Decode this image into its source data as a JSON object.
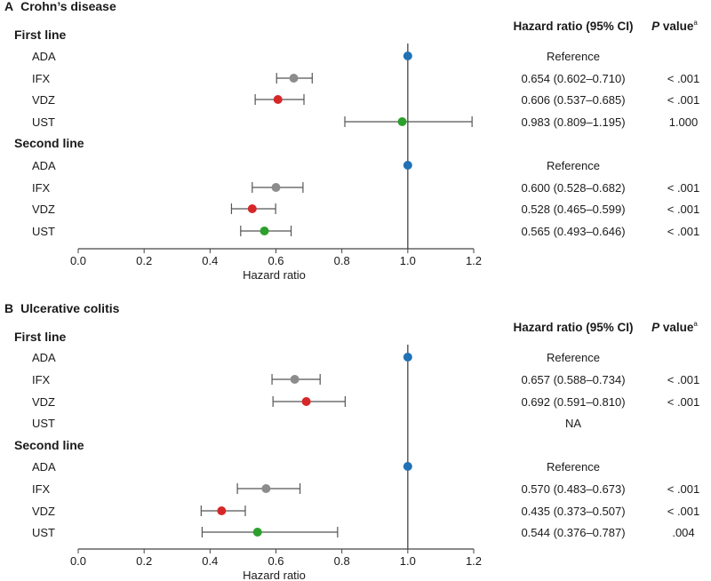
{
  "chart_data": [
    {
      "type": "forest",
      "panel": "A",
      "title": "Crohn’s disease",
      "xlabel": "Hazard ratio",
      "xlim": [
        0.0,
        1.2
      ],
      "xticks": [
        "0.0",
        "0.2",
        "0.4",
        "0.6",
        "0.8",
        "1.0",
        "1.2"
      ],
      "reference_line": 1.0,
      "col_hr": "Hazard ratio (95% CI)",
      "col_p": "P value",
      "col_p_sup": "a",
      "groups": [
        {
          "label": "First line",
          "rows": [
            {
              "drug": "ADA",
              "hr": 1.0,
              "lo": null,
              "hi": null,
              "hr_text": "Reference",
              "p": "",
              "color": "#2171b5"
            },
            {
              "drug": "IFX",
              "hr": 0.654,
              "lo": 0.602,
              "hi": 0.71,
              "hr_text": "0.654 (0.602–0.710)",
              "p": "< .001",
              "color": "#8c8c8c"
            },
            {
              "drug": "VDZ",
              "hr": 0.606,
              "lo": 0.537,
              "hi": 0.685,
              "hr_text": "0.606 (0.537–0.685)",
              "p": "< .001",
              "color": "#d62728"
            },
            {
              "drug": "UST",
              "hr": 0.983,
              "lo": 0.809,
              "hi": 1.195,
              "hr_text": "0.983 (0.809–1.195)",
              "p": "1.000",
              "color": "#2ca02c"
            }
          ]
        },
        {
          "label": "Second line",
          "rows": [
            {
              "drug": "ADA",
              "hr": 1.0,
              "lo": null,
              "hi": null,
              "hr_text": "Reference",
              "p": "",
              "color": "#2171b5"
            },
            {
              "drug": "IFX",
              "hr": 0.6,
              "lo": 0.528,
              "hi": 0.682,
              "hr_text": "0.600 (0.528–0.682)",
              "p": "< .001",
              "color": "#8c8c8c"
            },
            {
              "drug": "VDZ",
              "hr": 0.528,
              "lo": 0.465,
              "hi": 0.599,
              "hr_text": "0.528 (0.465–0.599)",
              "p": "< .001",
              "color": "#d62728"
            },
            {
              "drug": "UST",
              "hr": 0.565,
              "lo": 0.493,
              "hi": 0.646,
              "hr_text": "0.565 (0.493–0.646)",
              "p": "< .001",
              "color": "#2ca02c"
            }
          ]
        }
      ]
    },
    {
      "type": "forest",
      "panel": "B",
      "title": "Ulcerative colitis",
      "xlabel": "Hazard ratio",
      "xlim": [
        0.0,
        1.2
      ],
      "xticks": [
        "0.0",
        "0.2",
        "0.4",
        "0.6",
        "0.8",
        "1.0",
        "1.2"
      ],
      "reference_line": 1.0,
      "col_hr": "Hazard ratio (95% CI)",
      "col_p": "P value",
      "col_p_sup": "a",
      "groups": [
        {
          "label": "First line",
          "rows": [
            {
              "drug": "ADA",
              "hr": 1.0,
              "lo": null,
              "hi": null,
              "hr_text": "Reference",
              "p": "",
              "color": "#2171b5"
            },
            {
              "drug": "IFX",
              "hr": 0.657,
              "lo": 0.588,
              "hi": 0.734,
              "hr_text": "0.657 (0.588–0.734)",
              "p": "< .001",
              "color": "#8c8c8c"
            },
            {
              "drug": "VDZ",
              "hr": 0.692,
              "lo": 0.591,
              "hi": 0.81,
              "hr_text": "0.692 (0.591–0.810)",
              "p": "< .001",
              "color": "#d62728"
            },
            {
              "drug": "UST",
              "hr": null,
              "lo": null,
              "hi": null,
              "hr_text": "NA",
              "p": "",
              "color": "#2ca02c"
            }
          ]
        },
        {
          "label": "Second line",
          "rows": [
            {
              "drug": "ADA",
              "hr": 1.0,
              "lo": null,
              "hi": null,
              "hr_text": "Reference",
              "p": "",
              "color": "#2171b5"
            },
            {
              "drug": "IFX",
              "hr": 0.57,
              "lo": 0.483,
              "hi": 0.673,
              "hr_text": "0.570 (0.483–0.673)",
              "p": "< .001",
              "color": "#8c8c8c"
            },
            {
              "drug": "VDZ",
              "hr": 0.435,
              "lo": 0.373,
              "hi": 0.507,
              "hr_text": "0.435 (0.373–0.507)",
              "p": "< .001",
              "color": "#d62728"
            },
            {
              "drug": "UST",
              "hr": 0.544,
              "lo": 0.376,
              "hi": 0.787,
              "hr_text": "0.544 (0.376–0.787)",
              "p": ".004",
              "color": "#2ca02c"
            }
          ]
        }
      ]
    }
  ]
}
